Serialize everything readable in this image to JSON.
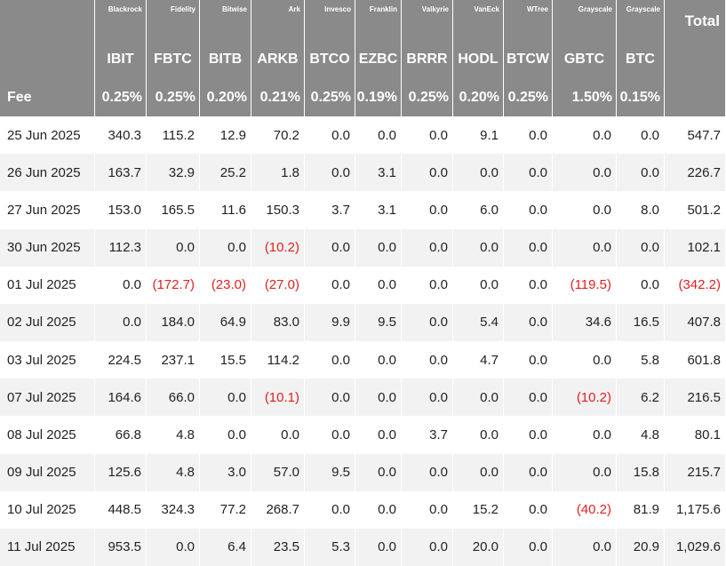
{
  "table": {
    "issuers": [
      "Blackrock",
      "Fidelity",
      "Bitwise",
      "Ark",
      "Invesco",
      "Franklin",
      "Valkyrie",
      "VanEck",
      "WTree",
      "Grayscale",
      "Grayscale"
    ],
    "total_label": "Total",
    "tickers": [
      "IBIT",
      "FBTC",
      "BITB",
      "ARKB",
      "BTCO",
      "EZBC",
      "BRRR",
      "HODL",
      "BTCW",
      "GBTC",
      "BTC"
    ],
    "fee_label": "Fee",
    "fees": [
      "0.25%",
      "0.25%",
      "0.20%",
      "0.21%",
      "0.25%",
      "0.19%",
      "0.25%",
      "0.20%",
      "0.25%",
      "1.50%",
      "0.15%"
    ],
    "rows": [
      [
        "25 Jun 2025",
        "340.3",
        "115.2",
        "12.9",
        "70.2",
        "0.0",
        "0.0",
        "0.0",
        "9.1",
        "0.0",
        "0.0",
        "0.0",
        "547.7"
      ],
      [
        "26 Jun 2025",
        "163.7",
        "32.9",
        "25.2",
        "1.8",
        "0.0",
        "3.1",
        "0.0",
        "0.0",
        "0.0",
        "0.0",
        "0.0",
        "226.7"
      ],
      [
        "27 Jun 2025",
        "153.0",
        "165.5",
        "11.6",
        "150.3",
        "3.7",
        "3.1",
        "0.0",
        "6.0",
        "0.0",
        "0.0",
        "8.0",
        "501.2"
      ],
      [
        "30 Jun 2025",
        "112.3",
        "0.0",
        "0.0",
        "(10.2)",
        "0.0",
        "0.0",
        "0.0",
        "0.0",
        "0.0",
        "0.0",
        "0.0",
        "102.1"
      ],
      [
        "01 Jul 2025",
        "0.0",
        "(172.7)",
        "(23.0)",
        "(27.0)",
        "0.0",
        "0.0",
        "0.0",
        "0.0",
        "0.0",
        "(119.5)",
        "0.0",
        "(342.2)"
      ],
      [
        "02 Jul 2025",
        "0.0",
        "184.0",
        "64.9",
        "83.0",
        "9.9",
        "9.5",
        "0.0",
        "5.4",
        "0.0",
        "34.6",
        "16.5",
        "407.8"
      ],
      [
        "03 Jul 2025",
        "224.5",
        "237.1",
        "15.5",
        "114.2",
        "0.0",
        "0.0",
        "0.0",
        "4.7",
        "0.0",
        "0.0",
        "5.8",
        "601.8"
      ],
      [
        "07 Jul 2025",
        "164.6",
        "66.0",
        "0.0",
        "(10.1)",
        "0.0",
        "0.0",
        "0.0",
        "0.0",
        "0.0",
        "(10.2)",
        "6.2",
        "216.5"
      ],
      [
        "08 Jul 2025",
        "66.8",
        "4.8",
        "0.0",
        "0.0",
        "0.0",
        "0.0",
        "3.7",
        "0.0",
        "0.0",
        "0.0",
        "4.8",
        "80.1"
      ],
      [
        "09 Jul 2025",
        "125.6",
        "4.8",
        "3.0",
        "57.0",
        "9.5",
        "0.0",
        "0.0",
        "0.0",
        "0.0",
        "0.0",
        "15.8",
        "215.7"
      ],
      [
        "10 Jul 2025",
        "448.5",
        "324.3",
        "77.2",
        "268.7",
        "0.0",
        "0.0",
        "0.0",
        "15.2",
        "0.0",
        "(40.2)",
        "81.9",
        "1,175.6"
      ],
      [
        "11 Jul 2025",
        "953.5",
        "0.0",
        "6.4",
        "23.5",
        "5.3",
        "0.0",
        "0.0",
        "20.0",
        "0.0",
        "0.0",
        "20.9",
        "1,029.6"
      ]
    ]
  }
}
